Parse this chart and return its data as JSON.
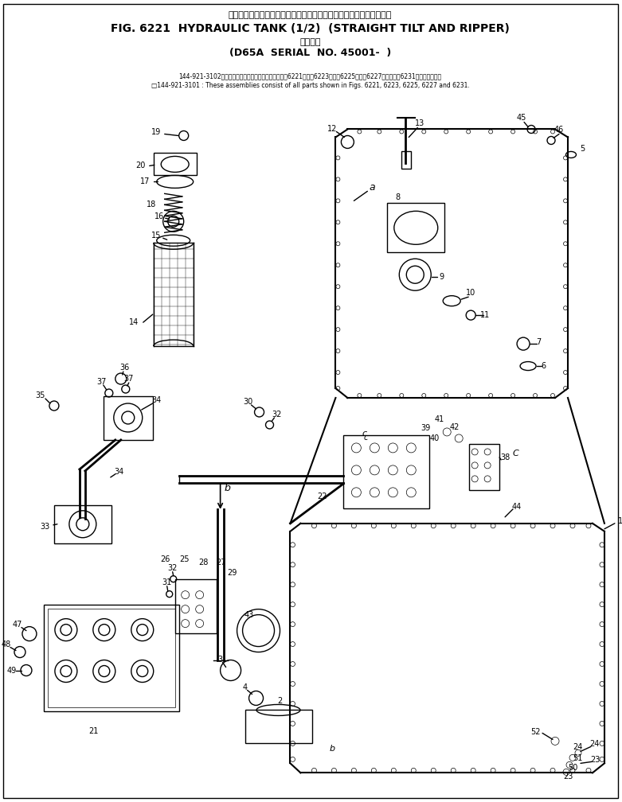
{
  "title_jp": "ハイドロリック　タンク　　　ストレート　チルト　および　リッパ",
  "title_en": "FIG. 6221  HYDRAULIC TANK (1/2)  (STRAIGHT TILT AND RIPPER)",
  "title_jp2": "適用号機",
  "title_serial": "(D65A  SERIAL  NO. 45001-  )",
  "note1": "144-921-3102　：これらのアセンブリの構成部品は第6221図、第6223図、第6225図、第6227図および第6231図を含みます。",
  "note2": "□144-921-3101 : These assemblies consist of all parts shown in Figs. 6221, 6223, 6225, 6227 and 6231.",
  "bg_color": "#ffffff",
  "line_color": "#000000",
  "fig_width": 7.81,
  "fig_height": 10.08,
  "dpi": 100
}
